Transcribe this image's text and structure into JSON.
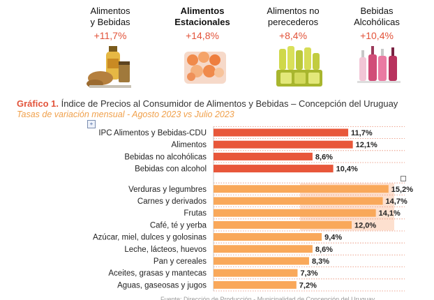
{
  "categories": [
    {
      "name": "Alimentos\ny Bebidas",
      "change": "+11,7%",
      "icon": "oil-bottle-and-jars-icon"
    },
    {
      "name": "Alimentos\nEstacionales",
      "change": "+14,8%",
      "icon": "fruits-and-vegetables-icon"
    },
    {
      "name": "Alimentos no\nperecederos",
      "change": "+8,4%",
      "icon": "canned-goods-icon"
    },
    {
      "name": "Bebidas\nAlcohólicas",
      "change": "+10,4%",
      "icon": "liquor-bottles-icon"
    }
  ],
  "chart_data": {
    "type": "bar",
    "orientation": "horizontal",
    "title_label": "Gráfico 1.",
    "title": "Índice de Precios al Consumidor de Alimentos y Bebidas – Concepción del Uruguay",
    "subtitle": "Tasas de variación mensual - Agosto 2023 vs Julio 2023",
    "categories": [
      "IPC Alimentos y Bebidas-CDU",
      "Alimentos",
      "Bebidas no alcohólicas",
      "Bebidas con alcohol",
      "Verduras y legumbres",
      "Carnes y derivados",
      "Frutas",
      "Café, té y yerba",
      "Azúcar, miel, dulces y golosinas",
      "Leche, lácteos, huevos",
      "Pan y cereales",
      "Aceites, grasas y mantecas",
      "Aguas, gaseosas y jugos"
    ],
    "values": [
      11.7,
      12.1,
      8.6,
      10.4,
      15.2,
      14.7,
      14.1,
      12.0,
      9.4,
      8.6,
      8.3,
      7.3,
      7.2
    ],
    "value_labels": [
      "11,7%",
      "12,1%",
      "8,6%",
      "10,4%",
      "15,2%",
      "14,7%",
      "14,1%",
      "12,0%",
      "9,4%",
      "8,6%",
      "8,3%",
      "7,3%",
      "7,2%"
    ],
    "groups": [
      0,
      0,
      0,
      0,
      1,
      1,
      1,
      1,
      1,
      1,
      1,
      1,
      1
    ],
    "colors": {
      "group0": "#e8573a",
      "group1": "#f9a85a",
      "grid": "#e8896f"
    },
    "xlim": [
      0,
      16
    ],
    "grid": true,
    "legend": "none"
  },
  "source_text": "Fuente: Dirección de Producción - Municipalidad de Concepción del Uruguay"
}
